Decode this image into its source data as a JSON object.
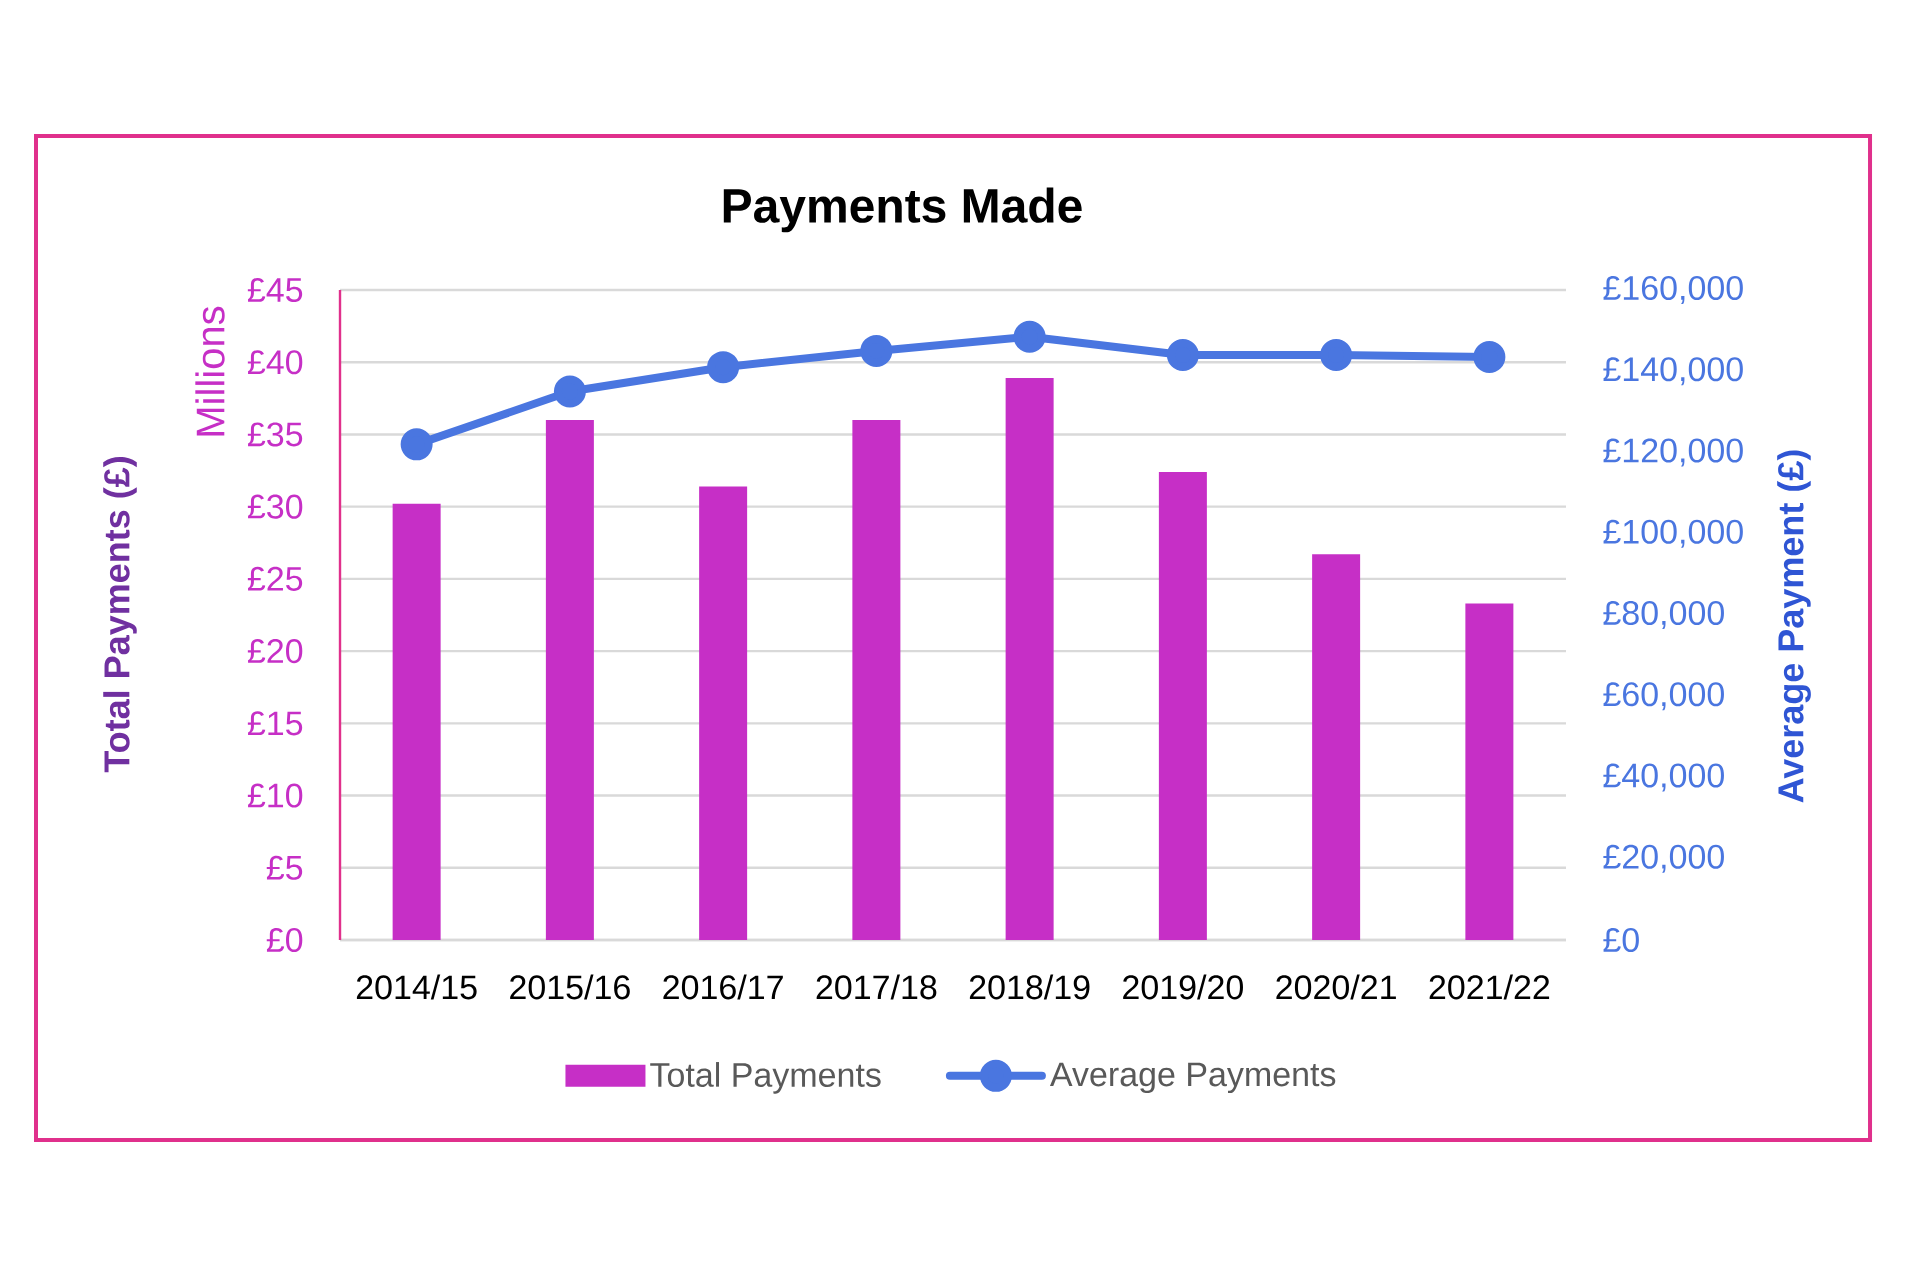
{
  "chart_data": {
    "type": "bar",
    "title": "Payments Made",
    "ylabel": "Total Payments (£)",
    "y2label": "Average Payment (£)",
    "annotations": [
      "Millions"
    ],
    "categories": [
      "2014/15",
      "2015/16",
      "2016/17",
      "2017/18",
      "2018/19",
      "2019/20",
      "2020/21",
      "2021/22"
    ],
    "series": [
      {
        "name": "Total Payments",
        "color": "#c62fc6",
        "values": [
          30.2,
          36.0,
          31.4,
          36.0,
          38.9,
          32.4,
          26.7,
          23.3
        ]
      },
      {
        "name": "Average Payments",
        "type": "line",
        "axis": "y2",
        "marker": "circle",
        "color": "#4a76e0",
        "values": [
          122000,
          135000,
          141000,
          145000,
          148500,
          144000,
          144000,
          143500
        ]
      }
    ],
    "ylim": [
      0,
      45
    ],
    "yticks": [
      {
        "value": 0,
        "label": "£0"
      },
      {
        "value": 5,
        "label": "£5"
      },
      {
        "value": 10,
        "label": "£10"
      },
      {
        "value": 15,
        "label": "£15"
      },
      {
        "value": 20,
        "label": "£20"
      },
      {
        "value": 25,
        "label": "£25"
      },
      {
        "value": 30,
        "label": "£30"
      },
      {
        "value": 35,
        "label": "£35"
      },
      {
        "value": 40,
        "label": "£40"
      },
      {
        "value": 45,
        "label": "£45"
      }
    ],
    "y2lim": [
      0,
      160000
    ],
    "y2ticks": [
      {
        "value": 0,
        "label": "£0"
      },
      {
        "value": 20000,
        "label": "£20,000"
      },
      {
        "value": 40000,
        "label": "£40,000"
      },
      {
        "value": 60000,
        "label": "£60,000"
      },
      {
        "value": 80000,
        "label": "£80,000"
      },
      {
        "value": 100000,
        "label": "£100,000"
      },
      {
        "value": 120000,
        "label": "£120,000"
      },
      {
        "value": 140000,
        "label": "£140,000"
      },
      {
        "value": 160000,
        "label": "£160,000"
      }
    ],
    "grid": "y",
    "legend": "bottom"
  }
}
